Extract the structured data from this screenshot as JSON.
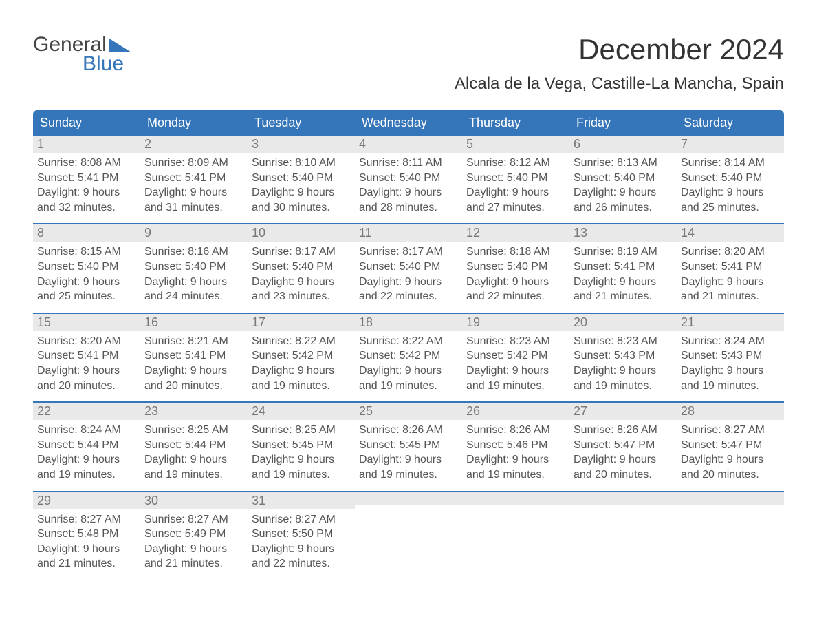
{
  "logo": {
    "text1": "General",
    "text2": "Blue"
  },
  "title": "December 2024",
  "subtitle": "Alcala de la Vega, Castille-La Mancha, Spain",
  "colors": {
    "header_bg": "#3575b9",
    "header_text": "#ffffff",
    "daynum_bg": "#e9e9e9",
    "body_text": "#555555",
    "title_text": "#333333",
    "border": "#3575b9"
  },
  "font": {
    "family": "Arial",
    "title_size": 42,
    "subtitle_size": 24,
    "header_size": 18,
    "body_size": 16
  },
  "weekdays": [
    "Sunday",
    "Monday",
    "Tuesday",
    "Wednesday",
    "Thursday",
    "Friday",
    "Saturday"
  ],
  "weeks": [
    [
      {
        "day": 1,
        "sunrise": "8:08 AM",
        "sunset": "5:41 PM",
        "daylight": "9 hours and 32 minutes."
      },
      {
        "day": 2,
        "sunrise": "8:09 AM",
        "sunset": "5:41 PM",
        "daylight": "9 hours and 31 minutes."
      },
      {
        "day": 3,
        "sunrise": "8:10 AM",
        "sunset": "5:40 PM",
        "daylight": "9 hours and 30 minutes."
      },
      {
        "day": 4,
        "sunrise": "8:11 AM",
        "sunset": "5:40 PM",
        "daylight": "9 hours and 28 minutes."
      },
      {
        "day": 5,
        "sunrise": "8:12 AM",
        "sunset": "5:40 PM",
        "daylight": "9 hours and 27 minutes."
      },
      {
        "day": 6,
        "sunrise": "8:13 AM",
        "sunset": "5:40 PM",
        "daylight": "9 hours and 26 minutes."
      },
      {
        "day": 7,
        "sunrise": "8:14 AM",
        "sunset": "5:40 PM",
        "daylight": "9 hours and 25 minutes."
      }
    ],
    [
      {
        "day": 8,
        "sunrise": "8:15 AM",
        "sunset": "5:40 PM",
        "daylight": "9 hours and 25 minutes."
      },
      {
        "day": 9,
        "sunrise": "8:16 AM",
        "sunset": "5:40 PM",
        "daylight": "9 hours and 24 minutes."
      },
      {
        "day": 10,
        "sunrise": "8:17 AM",
        "sunset": "5:40 PM",
        "daylight": "9 hours and 23 minutes."
      },
      {
        "day": 11,
        "sunrise": "8:17 AM",
        "sunset": "5:40 PM",
        "daylight": "9 hours and 22 minutes."
      },
      {
        "day": 12,
        "sunrise": "8:18 AM",
        "sunset": "5:40 PM",
        "daylight": "9 hours and 22 minutes."
      },
      {
        "day": 13,
        "sunrise": "8:19 AM",
        "sunset": "5:41 PM",
        "daylight": "9 hours and 21 minutes."
      },
      {
        "day": 14,
        "sunrise": "8:20 AM",
        "sunset": "5:41 PM",
        "daylight": "9 hours and 21 minutes."
      }
    ],
    [
      {
        "day": 15,
        "sunrise": "8:20 AM",
        "sunset": "5:41 PM",
        "daylight": "9 hours and 20 minutes."
      },
      {
        "day": 16,
        "sunrise": "8:21 AM",
        "sunset": "5:41 PM",
        "daylight": "9 hours and 20 minutes."
      },
      {
        "day": 17,
        "sunrise": "8:22 AM",
        "sunset": "5:42 PM",
        "daylight": "9 hours and 19 minutes."
      },
      {
        "day": 18,
        "sunrise": "8:22 AM",
        "sunset": "5:42 PM",
        "daylight": "9 hours and 19 minutes."
      },
      {
        "day": 19,
        "sunrise": "8:23 AM",
        "sunset": "5:42 PM",
        "daylight": "9 hours and 19 minutes."
      },
      {
        "day": 20,
        "sunrise": "8:23 AM",
        "sunset": "5:43 PM",
        "daylight": "9 hours and 19 minutes."
      },
      {
        "day": 21,
        "sunrise": "8:24 AM",
        "sunset": "5:43 PM",
        "daylight": "9 hours and 19 minutes."
      }
    ],
    [
      {
        "day": 22,
        "sunrise": "8:24 AM",
        "sunset": "5:44 PM",
        "daylight": "9 hours and 19 minutes."
      },
      {
        "day": 23,
        "sunrise": "8:25 AM",
        "sunset": "5:44 PM",
        "daylight": "9 hours and 19 minutes."
      },
      {
        "day": 24,
        "sunrise": "8:25 AM",
        "sunset": "5:45 PM",
        "daylight": "9 hours and 19 minutes."
      },
      {
        "day": 25,
        "sunrise": "8:26 AM",
        "sunset": "5:45 PM",
        "daylight": "9 hours and 19 minutes."
      },
      {
        "day": 26,
        "sunrise": "8:26 AM",
        "sunset": "5:46 PM",
        "daylight": "9 hours and 19 minutes."
      },
      {
        "day": 27,
        "sunrise": "8:26 AM",
        "sunset": "5:47 PM",
        "daylight": "9 hours and 20 minutes."
      },
      {
        "day": 28,
        "sunrise": "8:27 AM",
        "sunset": "5:47 PM",
        "daylight": "9 hours and 20 minutes."
      }
    ],
    [
      {
        "day": 29,
        "sunrise": "8:27 AM",
        "sunset": "5:48 PM",
        "daylight": "9 hours and 21 minutes."
      },
      {
        "day": 30,
        "sunrise": "8:27 AM",
        "sunset": "5:49 PM",
        "daylight": "9 hours and 21 minutes."
      },
      {
        "day": 31,
        "sunrise": "8:27 AM",
        "sunset": "5:50 PM",
        "daylight": "9 hours and 22 minutes."
      },
      null,
      null,
      null,
      null
    ]
  ],
  "labels": {
    "sunrise": "Sunrise:",
    "sunset": "Sunset:",
    "daylight": "Daylight:"
  }
}
